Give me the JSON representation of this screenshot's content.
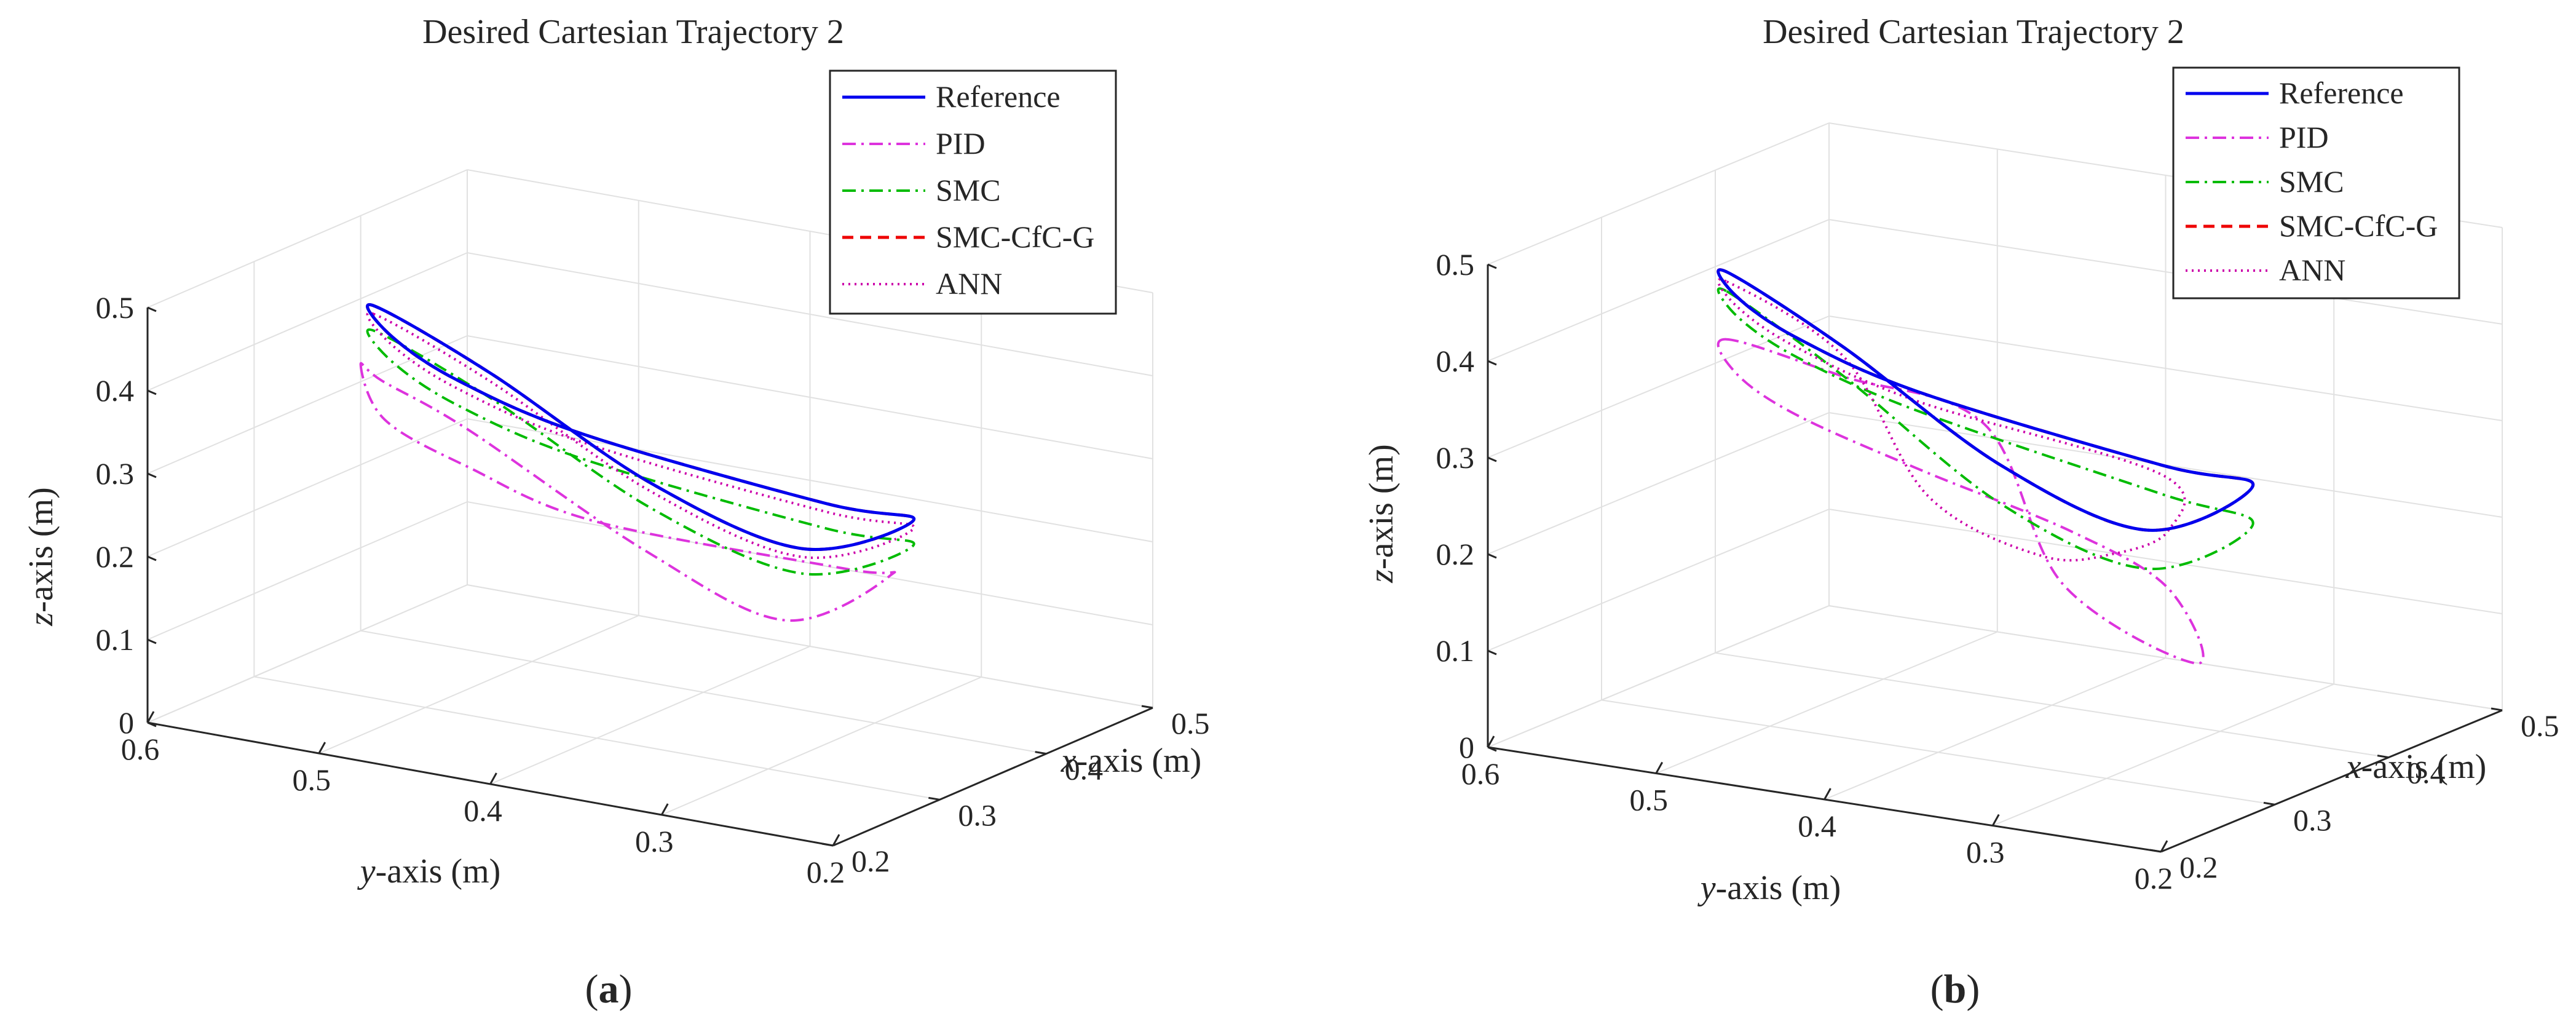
{
  "figure": {
    "panels": [
      {
        "title": "Desired Cartesian Trajectory 2",
        "xlabel_var": "x",
        "xlabel_rest": "-axis (m)",
        "ylabel_var": "y",
        "ylabel_rest": "-axis (m)",
        "zlabel_var": "z",
        "zlabel_rest": "-axis (m)",
        "caption": "a"
      },
      {
        "title": "Desired Cartesian Trajectory 2",
        "xlabel_var": "x",
        "xlabel_rest": "-axis (m)",
        "ylabel_var": "y",
        "ylabel_rest": "-axis (m)",
        "zlabel_var": "z",
        "zlabel_rest": "-axis (m)",
        "caption": "b"
      }
    ],
    "caption_open": "(",
    "caption_close": ")"
  },
  "chart_data": [
    {
      "type": "line",
      "view": "3d",
      "title": "Desired Cartesian Trajectory 2",
      "xlabel": "x-axis (m)",
      "ylabel": "y-axis (m)",
      "zlabel": "z-axis (m)",
      "xlim": [
        0.2,
        0.5
      ],
      "ylim": [
        0.2,
        0.6
      ],
      "zlim": [
        0,
        0.5
      ],
      "xticks": [
        "0.2",
        "0.3",
        "0.4",
        "0.5"
      ],
      "yticks": [
        "0.6",
        "0.5",
        "0.4",
        "0.3",
        "0.2"
      ],
      "zticks": [
        "0",
        "0.1",
        "0.2",
        "0.3",
        "0.4",
        "0.5"
      ],
      "grid": true,
      "legend_position": "top-right",
      "series": [
        {
          "name": "Reference",
          "color": "#0000ee",
          "dash": "solid",
          "points": [
            [
              0.38,
              0.58,
              0.41
            ],
            [
              0.3,
              0.52,
              0.44
            ],
            [
              0.25,
              0.45,
              0.44
            ],
            [
              0.24,
              0.37,
              0.41
            ],
            [
              0.29,
              0.26,
              0.34
            ],
            [
              0.34,
              0.24,
              0.3
            ],
            [
              0.38,
              0.33,
              0.21
            ],
            [
              0.4,
              0.43,
              0.24
            ],
            [
              0.41,
              0.53,
              0.33
            ],
            [
              0.38,
              0.58,
              0.41
            ]
          ]
        },
        {
          "name": "PID",
          "color": "#dd33dd",
          "dash": "dashdot",
          "points": [
            [
              0.4,
              0.6,
              0.32
            ],
            [
              0.31,
              0.53,
              0.33
            ],
            [
              0.26,
              0.45,
              0.33
            ],
            [
              0.25,
              0.37,
              0.3
            ],
            [
              0.31,
              0.26,
              0.25
            ],
            [
              0.35,
              0.26,
              0.22
            ],
            [
              0.38,
              0.34,
              0.12
            ],
            [
              0.41,
              0.44,
              0.15
            ],
            [
              0.42,
              0.55,
              0.25
            ],
            [
              0.42,
              0.6,
              0.29
            ]
          ]
        },
        {
          "name": "SMC",
          "color": "#00bb00",
          "dash": "dashdot",
          "points": [
            [
              0.38,
              0.58,
              0.38
            ],
            [
              0.3,
              0.52,
              0.41
            ],
            [
              0.25,
              0.45,
              0.41
            ],
            [
              0.24,
              0.37,
              0.38
            ],
            [
              0.29,
              0.26,
              0.31
            ],
            [
              0.34,
              0.24,
              0.27
            ],
            [
              0.38,
              0.33,
              0.18
            ],
            [
              0.4,
              0.43,
              0.21
            ],
            [
              0.41,
              0.53,
              0.3
            ],
            [
              0.38,
              0.58,
              0.38
            ]
          ]
        },
        {
          "name": "SMC-CfC-G",
          "color": "#ee0000",
          "dash": "dashed",
          "points": [
            [
              0.38,
              0.58,
              0.41
            ],
            [
              0.3,
              0.52,
              0.44
            ],
            [
              0.25,
              0.45,
              0.44
            ],
            [
              0.24,
              0.37,
              0.41
            ],
            [
              0.29,
              0.26,
              0.34
            ],
            [
              0.34,
              0.24,
              0.3
            ],
            [
              0.38,
              0.33,
              0.21
            ],
            [
              0.4,
              0.43,
              0.24
            ],
            [
              0.41,
              0.53,
              0.33
            ],
            [
              0.38,
              0.58,
              0.41
            ]
          ]
        },
        {
          "name": "ANN",
          "color": "#cc00aa",
          "dash": "dotted",
          "points": [
            [
              0.38,
              0.58,
              0.4
            ],
            [
              0.3,
              0.52,
              0.43
            ],
            [
              0.25,
              0.45,
              0.43
            ],
            [
              0.24,
              0.37,
              0.4
            ],
            [
              0.29,
              0.26,
              0.33
            ],
            [
              0.34,
              0.24,
              0.29
            ],
            [
              0.38,
              0.33,
              0.2
            ],
            [
              0.4,
              0.43,
              0.23
            ],
            [
              0.41,
              0.53,
              0.32
            ],
            [
              0.38,
              0.58,
              0.4
            ]
          ]
        }
      ]
    },
    {
      "type": "line",
      "view": "3d",
      "title": "Desired Cartesian Trajectory 2",
      "xlabel": "x-axis (m)",
      "ylabel": "y-axis (m)",
      "zlabel": "z-axis (m)",
      "xlim": [
        0.2,
        0.5
      ],
      "ylim": [
        0.2,
        0.6
      ],
      "zlim": [
        0,
        0.5
      ],
      "xticks": [
        "0.2",
        "0.3",
        "0.4",
        "0.5"
      ],
      "yticks": [
        "0.6",
        "0.5",
        "0.4",
        "0.3",
        "0.2"
      ],
      "zticks": [
        "0",
        "0.1",
        "0.2",
        "0.3",
        "0.4",
        "0.5"
      ],
      "grid": true,
      "legend_position": "top-right",
      "series": [
        {
          "name": "Reference",
          "color": "#0000ee",
          "dash": "solid",
          "points": [
            [
              0.38,
              0.58,
              0.41
            ],
            [
              0.3,
              0.52,
              0.44
            ],
            [
              0.25,
              0.45,
              0.44
            ],
            [
              0.24,
              0.37,
              0.41
            ],
            [
              0.29,
              0.26,
              0.34
            ],
            [
              0.34,
              0.24,
              0.3
            ],
            [
              0.38,
              0.33,
              0.21
            ],
            [
              0.4,
              0.43,
              0.24
            ],
            [
              0.41,
              0.53,
              0.33
            ],
            [
              0.38,
              0.58,
              0.41
            ]
          ]
        },
        {
          "name": "PID",
          "color": "#dd33dd",
          "dash": "dashdot",
          "points": [
            [
              0.38,
              0.58,
              0.34
            ],
            [
              0.3,
              0.52,
              0.36
            ],
            [
              0.25,
              0.45,
              0.36
            ],
            [
              0.24,
              0.37,
              0.33
            ],
            [
              0.27,
              0.3,
              0.27
            ],
            [
              0.31,
              0.27,
              0.2
            ],
            [
              0.38,
              0.3,
              0.08
            ],
            [
              0.41,
              0.4,
              0.12
            ],
            [
              0.4,
              0.44,
              0.28
            ],
            [
              0.41,
              0.53,
              0.3
            ],
            [
              0.38,
              0.58,
              0.34
            ]
          ]
        },
        {
          "name": "SMC",
          "color": "#00bb00",
          "dash": "dashdot",
          "points": [
            [
              0.38,
              0.58,
              0.39
            ],
            [
              0.3,
              0.52,
              0.42
            ],
            [
              0.25,
              0.45,
              0.42
            ],
            [
              0.24,
              0.37,
              0.39
            ],
            [
              0.29,
              0.26,
              0.31
            ],
            [
              0.34,
              0.24,
              0.26
            ],
            [
              0.38,
              0.33,
              0.17
            ],
            [
              0.4,
              0.43,
              0.2
            ],
            [
              0.41,
              0.53,
              0.3
            ],
            [
              0.38,
              0.58,
              0.39
            ]
          ]
        },
        {
          "name": "SMC-CfC-G",
          "color": "#ee0000",
          "dash": "dashed",
          "points": [
            [
              0.38,
              0.58,
              0.41
            ],
            [
              0.3,
              0.52,
              0.44
            ],
            [
              0.25,
              0.45,
              0.44
            ],
            [
              0.24,
              0.37,
              0.41
            ],
            [
              0.29,
              0.26,
              0.34
            ],
            [
              0.34,
              0.24,
              0.3
            ],
            [
              0.38,
              0.33,
              0.21
            ],
            [
              0.4,
              0.43,
              0.24
            ],
            [
              0.41,
              0.53,
              0.33
            ],
            [
              0.38,
              0.58,
              0.41
            ]
          ]
        },
        {
          "name": "ANN",
          "color": "#cc00aa",
          "dash": "dotted",
          "points": [
            [
              0.38,
              0.58,
              0.4
            ],
            [
              0.3,
              0.52,
              0.43
            ],
            [
              0.25,
              0.45,
              0.43
            ],
            [
              0.24,
              0.37,
              0.4
            ],
            [
              0.29,
              0.26,
              0.33
            ],
            [
              0.31,
              0.27,
              0.26
            ],
            [
              0.32,
              0.31,
              0.22
            ],
            [
              0.36,
              0.38,
              0.18
            ],
            [
              0.38,
              0.46,
              0.21
            ],
            [
              0.41,
              0.53,
              0.32
            ],
            [
              0.38,
              0.58,
              0.4
            ]
          ]
        }
      ]
    }
  ]
}
